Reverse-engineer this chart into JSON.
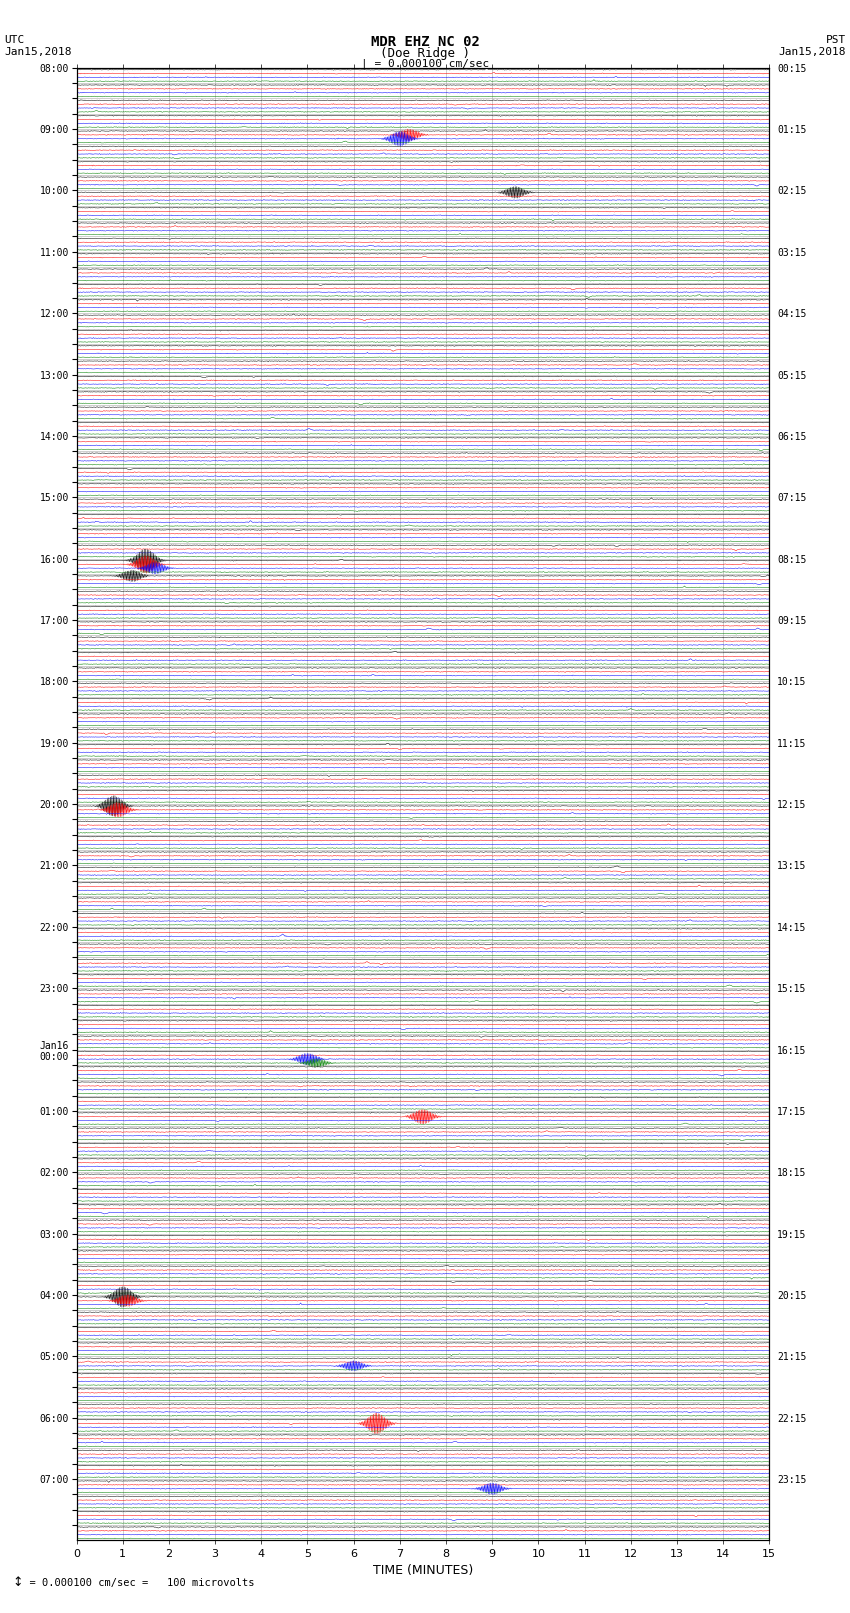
{
  "title_line1": "MDR EHZ NC 02",
  "title_line2": "(Doe Ridge )",
  "scale_text": "| = 0.000100 cm/sec",
  "scale_note": "= 0.000100 cm/sec =   100 microvolts",
  "left_label_line1": "UTC",
  "left_label_line2": "Jan15,2018",
  "right_label_line1": "PST",
  "right_label_line2": "Jan15,2018",
  "num_rows": 96,
  "traces_per_row": 4,
  "trace_colors": [
    "black",
    "red",
    "blue",
    "green"
  ],
  "fig_width": 8.5,
  "fig_height": 16.13,
  "dpi": 100,
  "xlim": [
    0,
    15
  ],
  "xlabel": "TIME (MINUTES)",
  "xticks": [
    0,
    1,
    2,
    3,
    4,
    5,
    6,
    7,
    8,
    9,
    10,
    11,
    12,
    13,
    14,
    15
  ],
  "noise_amp": 0.15,
  "background_color": "white",
  "grid_color": "#aaaaaa",
  "grid_linewidth": 0.4
}
